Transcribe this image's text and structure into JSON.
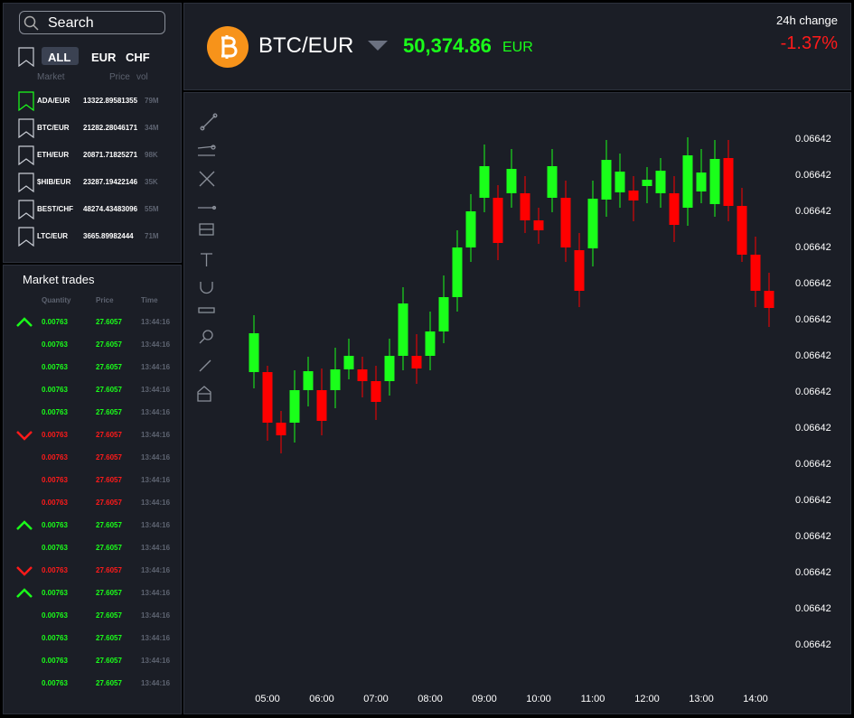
{
  "search": "Search",
  "tabs": [
    "ALL",
    "EUR",
    "CHF"
  ],
  "markets": {
    "columns": [
      "Market",
      "Price",
      "vol"
    ],
    "rows": [
      [
        "ADA/EUR",
        "13322.89581355",
        "79M"
      ],
      [
        "BTC/EUR",
        "21282.28046171",
        "34M"
      ],
      [
        "ETH/EUR",
        "20871.71825271",
        "98K"
      ],
      [
        "$HIB/EUR",
        "23287.19422146",
        "35K"
      ],
      [
        "BEST/CHF",
        "48274.43483096",
        "55M"
      ],
      [
        "LTC/EUR",
        "3665.89982444",
        "71M"
      ]
    ]
  },
  "trades": {
    "title": "Market trades",
    "columns": [
      "Quantity",
      "Price",
      "Time"
    ],
    "up_color": "#1aff1a",
    "down_color": "#ff1a1a",
    "rows": [
      {
        "quantity": "0.00763",
        "price": "27.6057",
        "time": "13:44:16",
        "color": "#1aff1a"
      },
      {
        "quantity": "0.00763",
        "price": "27.6057",
        "time": "13:44:16",
        "color": "#1aff1a"
      },
      {
        "quantity": "0.00763",
        "price": "27.6057",
        "time": "13:44:16",
        "color": "#1aff1a"
      },
      {
        "quantity": "0.00763",
        "price": "27.6057",
        "time": "13:44:16",
        "color": "#1aff1a"
      },
      {
        "quantity": "0.00763",
        "price": "27.6057",
        "time": "13:44:16",
        "color": "#1aff1a"
      },
      {
        "quantity": "0.00763",
        "price": "27.6057",
        "time": "13:44:16",
        "color": "#ff1a1a"
      },
      {
        "quantity": "0.00763",
        "price": "27.6057",
        "time": "13:44:16",
        "color": "#ff1a1a"
      },
      {
        "quantity": "0.00763",
        "price": "27.6057",
        "time": "13:44:16",
        "color": "#ff1a1a"
      },
      {
        "quantity": "0.00763",
        "price": "27.6057",
        "time": "13:44:16",
        "color": "#ff1a1a"
      },
      {
        "quantity": "0.00763",
        "price": "27.6057",
        "time": "13:44:16",
        "color": "#1aff1a"
      },
      {
        "quantity": "0.00763",
        "price": "27.6057",
        "time": "13:44:16",
        "color": "#1aff1a"
      },
      {
        "quantity": "0.00763",
        "price": "27.6057",
        "time": "13:44:16",
        "color": "#ff1a1a"
      },
      {
        "quantity": "0.00763",
        "price": "27.6057",
        "time": "13:44:16",
        "color": "#1aff1a"
      },
      {
        "quantity": "0.00763",
        "price": "27.6057",
        "time": "13:44:16",
        "color": "#1aff1a"
      },
      {
        "quantity": "0.00763",
        "price": "27.6057",
        "time": "13:44:16",
        "color": "#1aff1a"
      },
      {
        "quantity": "0.00763",
        "price": "27.6057",
        "time": "13:44:16",
        "color": "#1aff1a"
      },
      {
        "quantity": "0.00763",
        "price": "27.6057",
        "time": "13:44:16",
        "color": "#1aff1a"
      }
    ]
  },
  "header": {
    "pair": "BTC/EUR",
    "price": "50,374.86",
    "currency": "EUR",
    "change_label": "24h change",
    "change": "-1.37%"
  },
  "chart_data": {
    "type": "candlestick",
    "up_color": "#1aff1a",
    "down_color": "#ff0000",
    "categories": [
      null,
      "05:00",
      null,
      null,
      null,
      "06:00",
      null,
      null,
      null,
      "07:00",
      null,
      null,
      null,
      "08:00",
      null,
      null,
      null,
      "09:00",
      null,
      null,
      null,
      "10:00",
      null,
      null,
      null,
      "11:00",
      null,
      null,
      null,
      "12:00",
      null,
      null,
      null,
      "13:00",
      null,
      null,
      null,
      "14:00",
      null
    ],
    "open": [
      0.066420775,
      0.066420775,
      0.066420075,
      0.066420075,
      0.066420525,
      0.066420525,
      0.066420525,
      0.0664208125,
      0.0664208125,
      0.06642065,
      0.06642065,
      0.066421,
      0.066421,
      0.066421,
      0.0664213375,
      0.0664218125,
      0.0664225,
      0.0664231875,
      0.0664231875,
      0.06642325,
      0.06642325,
      0.066422875,
      0.0664231875,
      0.0664231875,
      0.0664224625,
      0.0664224875,
      0.0664231625,
      0.0664232625,
      0.0664232875,
      0.06642335,
      0.06642325,
      0.06642325,
      0.06642305,
      0.066423275,
      0.0664231,
      0.0664237375,
      0.066423075,
      0.0664224,
      0.0664219
    ],
    "high": [
      0.0664215625,
      0.0664208625,
      0.0664202375,
      0.0664208,
      0.0664209875,
      0.066420825,
      0.0664211125,
      0.0664212375,
      0.0664209875,
      0.0664208625,
      0.0664212375,
      0.06642195,
      0.0664213,
      0.0664216125,
      0.0664221125,
      0.0664227375,
      0.0664232375,
      0.066423925,
      0.0664233625,
      0.0664238625,
      0.0664234875,
      0.06642305,
      0.0664238625,
      0.066423425,
      0.0664227,
      0.066423425,
      0.0664239875,
      0.0664238,
      0.0664234875,
      0.0664236125,
      0.0664237375,
      0.0664234875,
      0.066424025,
      0.0664238625,
      0.0664239875,
      0.0664239875,
      0.066423325,
      0.06642265,
      0.06642215
    ],
    "low": [
      0.06642055,
      0.066419825,
      0.06641965,
      0.0664198,
      0.0664203,
      0.0664199,
      0.066420275,
      0.066420675,
      0.066420425,
      0.0664201125,
      0.06642045,
      0.0664208,
      0.0664206125,
      0.0664208,
      0.066421175,
      0.0664216125,
      0.0664223,
      0.0664229875,
      0.066422325,
      0.06642305,
      0.0664227,
      0.06642255,
      0.0664229875,
      0.0664223,
      0.066421675,
      0.0664222375,
      0.066422925,
      0.06642305,
      0.0664228625,
      0.0664231125,
      0.06642305,
      0.066422575,
      0.0664228,
      0.0664231125,
      0.066422925,
      0.0664228625,
      0.0664223,
      0.066421675,
      0.0664214
    ],
    "close": [
      0.0664213125,
      0.066420075,
      0.0664199,
      0.066420525,
      0.0664207875,
      0.0664201,
      0.0664208125,
      0.066421,
      0.06642065,
      0.0664203625,
      0.066421,
      0.066421725,
      0.066420825,
      0.0664213375,
      0.0664218125,
      0.0664225,
      0.066423,
      0.066423625,
      0.0664225625,
      0.0664235875,
      0.066422875,
      0.0664227375,
      0.066423625,
      0.0664225,
      0.0664219,
      0.066423175,
      0.0664237125,
      0.06642355,
      0.06642315,
      0.0664234375,
      0.0664235625,
      0.0664228125,
      0.066423775,
      0.0664235375,
      0.066423725,
      0.066423075,
      0.0664224,
      0.0664219,
      0.0664216625
    ],
    "ylim": [
      0.0664165,
      0.0664245
    ],
    "yticks": [
      {
        "value": 0.066424,
        "label": "0.06642"
      },
      {
        "value": 0.0664235,
        "label": "0.06642"
      },
      {
        "value": 0.066423,
        "label": "0.06642"
      },
      {
        "value": 0.0664225,
        "label": "0.06642"
      },
      {
        "value": 0.066422,
        "label": "0.06642"
      },
      {
        "value": 0.0664215,
        "label": "0.06642"
      },
      {
        "value": 0.066421,
        "label": "0.06642"
      },
      {
        "value": 0.0664205,
        "label": "0.06642"
      },
      {
        "value": 0.06642,
        "label": "0.06642"
      },
      {
        "value": 0.0664195,
        "label": "0.06642"
      },
      {
        "value": 0.066419,
        "label": "0.06642"
      },
      {
        "value": 0.0664185,
        "label": "0.06642"
      },
      {
        "value": 0.066418,
        "label": "0.06642"
      },
      {
        "value": 0.0664175,
        "label": "0.06642"
      },
      {
        "value": 0.066417,
        "label": "0.06642"
      }
    ]
  }
}
